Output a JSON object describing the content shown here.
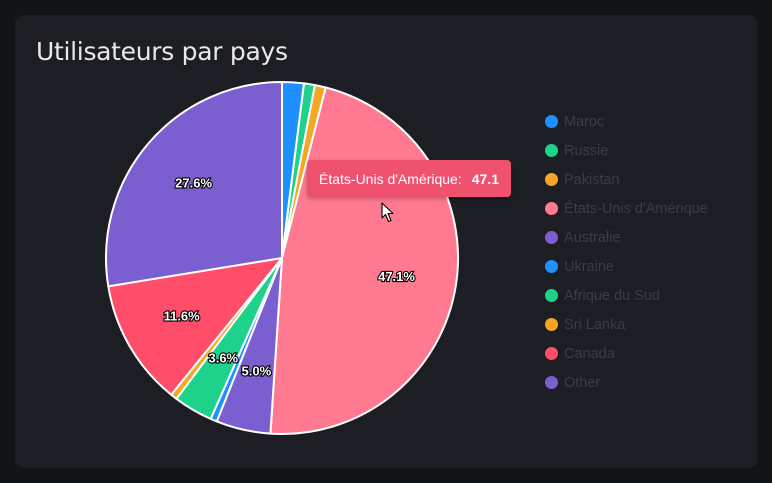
{
  "card": {
    "title": "Utilisateurs par pays"
  },
  "chart_data": {
    "type": "pie",
    "title": "Utilisateurs par pays",
    "categories": [
      "Maroc",
      "Russie",
      "Pakistan",
      "États-Unis d'Amérique",
      "Australie",
      "Ukraine",
      "Afrique du Sud",
      "Sri Lanka",
      "Canada",
      "Other"
    ],
    "values": [
      2.0,
      1.0,
      1.0,
      47.1,
      5.0,
      0.6,
      3.6,
      0.6,
      11.6,
      27.6
    ],
    "colors": [
      "#1e90ff",
      "#1ed28c",
      "#f5a623",
      "#ff7a90",
      "#7b5fd1",
      "#1e90ff",
      "#1ed28c",
      "#f5a623",
      "#ff4d6a",
      "#7b5fd1"
    ],
    "slice_labels": [
      "",
      "",
      "",
      "47.1%",
      "5.0%",
      "",
      "3.6%",
      "",
      "11.6%",
      "27.6%"
    ],
    "legend_position": "right",
    "highlighted": "États-Unis d'Amérique"
  },
  "tooltip": {
    "label": "États-Unis d'Amérique:",
    "value": "47.1",
    "color": "#f0516e"
  }
}
